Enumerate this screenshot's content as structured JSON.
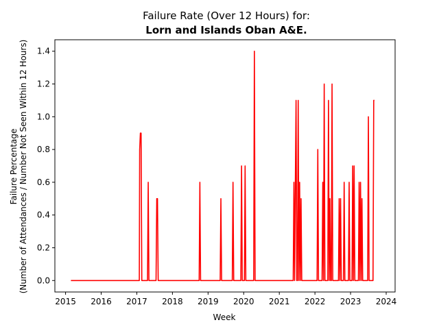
{
  "chart_data": {
    "type": "line",
    "title": "Failure Rate (Over 12 Hours) for:",
    "subtitle": "Lorn and Islands Oban A&E.",
    "xlabel": "Week",
    "ylabel_line1": "Failure Percentage",
    "ylabel_line2": "(Number of Attendances / Number Not Seen Within 12 Hours)",
    "xlim": [
      2014.7,
      2024.25
    ],
    "ylim": [
      -0.07,
      1.47
    ],
    "x_ticks": [
      {
        "value": 2015,
        "label": "2015"
      },
      {
        "value": 2016,
        "label": "2016"
      },
      {
        "value": 2017,
        "label": "2017"
      },
      {
        "value": 2018,
        "label": "2018"
      },
      {
        "value": 2019,
        "label": "2019"
      },
      {
        "value": 2020,
        "label": "2020"
      },
      {
        "value": 2021,
        "label": "2021"
      },
      {
        "value": 2022,
        "label": "2022"
      },
      {
        "value": 2023,
        "label": "2023"
      },
      {
        "value": 2024,
        "label": "2024"
      }
    ],
    "y_ticks": [
      {
        "value": 0.0,
        "label": "0.0"
      },
      {
        "value": 0.2,
        "label": "0.2"
      },
      {
        "value": 0.4,
        "label": "0.4"
      },
      {
        "value": 0.6,
        "label": "0.6"
      },
      {
        "value": 0.8,
        "label": "0.8"
      },
      {
        "value": 1.0,
        "label": "1.0"
      },
      {
        "value": 1.2,
        "label": "1.2"
      },
      {
        "value": 1.4,
        "label": "1.4"
      }
    ],
    "grid": false,
    "series": [
      {
        "color": "#ff0000",
        "x": [
          2015.15,
          2017.07,
          2017.08,
          2017.1,
          2017.12,
          2017.14,
          2017.3,
          2017.32,
          2017.34,
          2017.54,
          2017.56,
          2017.58,
          2017.6,
          2018.75,
          2018.77,
          2018.79,
          2019.34,
          2019.36,
          2019.38,
          2019.68,
          2019.7,
          2019.72,
          2019.92,
          2019.94,
          2019.96,
          2020.02,
          2020.04,
          2020.06,
          2020.28,
          2020.3,
          2020.32,
          2021.39,
          2021.41,
          2021.43,
          2021.45,
          2021.47,
          2021.49,
          2021.51,
          2021.53,
          2021.55,
          2021.57,
          2021.59,
          2021.61,
          2021.63,
          2021.65,
          2021.67,
          2022.06,
          2022.08,
          2022.1,
          2022.2,
          2022.22,
          2022.24,
          2022.26,
          2022.28,
          2022.36,
          2022.38,
          2022.4,
          2022.42,
          2022.44,
          2022.46,
          2022.48,
          2022.5,
          2022.52,
          2022.54,
          2022.66,
          2022.68,
          2022.7,
          2022.72,
          2022.74,
          2022.76,
          2022.8,
          2022.82,
          2022.84,
          2022.94,
          2022.96,
          2022.98,
          2023.04,
          2023.06,
          2023.08,
          2023.1,
          2023.12,
          2023.14,
          2023.22,
          2023.24,
          2023.26,
          2023.28,
          2023.3,
          2023.32,
          2023.34,
          2023.36,
          2023.48,
          2023.5,
          2023.52,
          2023.63,
          2023.65,
          2023.67
        ],
        "values": [
          0,
          0,
          0.8,
          0.9,
          0.9,
          0,
          0,
          0.6,
          0,
          0,
          0.5,
          0.5,
          0,
          0,
          0.6,
          0,
          0,
          0.5,
          0,
          0,
          0.6,
          0,
          0,
          0.7,
          0,
          0,
          0.7,
          0,
          0,
          1.4,
          0,
          0,
          0.6,
          0,
          0.6,
          1.1,
          0,
          0,
          1.1,
          0,
          0.6,
          0,
          0.5,
          0,
          0,
          0,
          0,
          0.8,
          0,
          0,
          0.6,
          0,
          1.2,
          0,
          0,
          1.1,
          0,
          0.5,
          0,
          0,
          1.2,
          0,
          0,
          0,
          0,
          0.5,
          0,
          0.5,
          0,
          0,
          0,
          0.6,
          0,
          0,
          0.6,
          0,
          0,
          0.7,
          0,
          0.7,
          0,
          0,
          0,
          0.6,
          0,
          0.6,
          0,
          0.5,
          0,
          0,
          0,
          1.0,
          0,
          0,
          1.1,
          1.1
        ]
      }
    ]
  }
}
